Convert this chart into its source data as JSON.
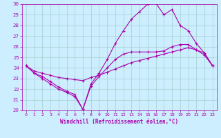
{
  "xlabel": "Windchill (Refroidissement éolien,°C)",
  "xlim": [
    -0.5,
    23.5
  ],
  "ylim": [
    20,
    30
  ],
  "yticks": [
    20,
    21,
    22,
    23,
    24,
    25,
    26,
    27,
    28,
    29,
    30
  ],
  "xticks": [
    0,
    1,
    2,
    3,
    4,
    5,
    6,
    7,
    8,
    9,
    10,
    11,
    12,
    13,
    14,
    15,
    16,
    17,
    18,
    19,
    20,
    21,
    22,
    23
  ],
  "bg_color": "#cceeff",
  "grid_color": "#aad4d4",
  "line_color": "#aa00aa",
  "series": [
    {
      "x": [
        0,
        1,
        2,
        3,
        4,
        5,
        6,
        7,
        8,
        9,
        10,
        11,
        12,
        13,
        14,
        15,
        16,
        17,
        18,
        19,
        20,
        21,
        22,
        23
      ],
      "y": [
        24.2,
        23.7,
        23.5,
        23.3,
        23.1,
        23.0,
        22.9,
        22.8,
        23.1,
        23.3,
        23.6,
        23.9,
        24.2,
        24.5,
        24.7,
        24.9,
        25.1,
        25.3,
        25.5,
        25.7,
        25.9,
        25.7,
        25.4,
        24.2
      ]
    },
    {
      "x": [
        0,
        1,
        2,
        3,
        4,
        5,
        6,
        7,
        8,
        9,
        10,
        11,
        12,
        13,
        14,
        15,
        16,
        17,
        18,
        19,
        20,
        21,
        22,
        23
      ],
      "y": [
        24.2,
        23.5,
        23.0,
        22.5,
        22.0,
        21.7,
        21.3,
        20.1,
        22.3,
        23.2,
        24.0,
        24.8,
        25.3,
        25.5,
        25.5,
        25.5,
        25.5,
        25.6,
        26.0,
        26.2,
        26.2,
        25.7,
        25.2,
        24.2
      ]
    },
    {
      "x": [
        0,
        1,
        2,
        3,
        4,
        5,
        6,
        7,
        8,
        9,
        10,
        11,
        12,
        13,
        14,
        15,
        16,
        17,
        18,
        19,
        20,
        21,
        22,
        23
      ],
      "y": [
        24.2,
        23.5,
        23.2,
        22.7,
        22.2,
        21.8,
        21.5,
        20.1,
        22.5,
        23.5,
        24.8,
        26.3,
        27.5,
        28.6,
        29.3,
        30.0,
        30.1,
        29.0,
        29.5,
        28.0,
        27.5,
        26.3,
        25.4,
        24.2
      ]
    }
  ]
}
